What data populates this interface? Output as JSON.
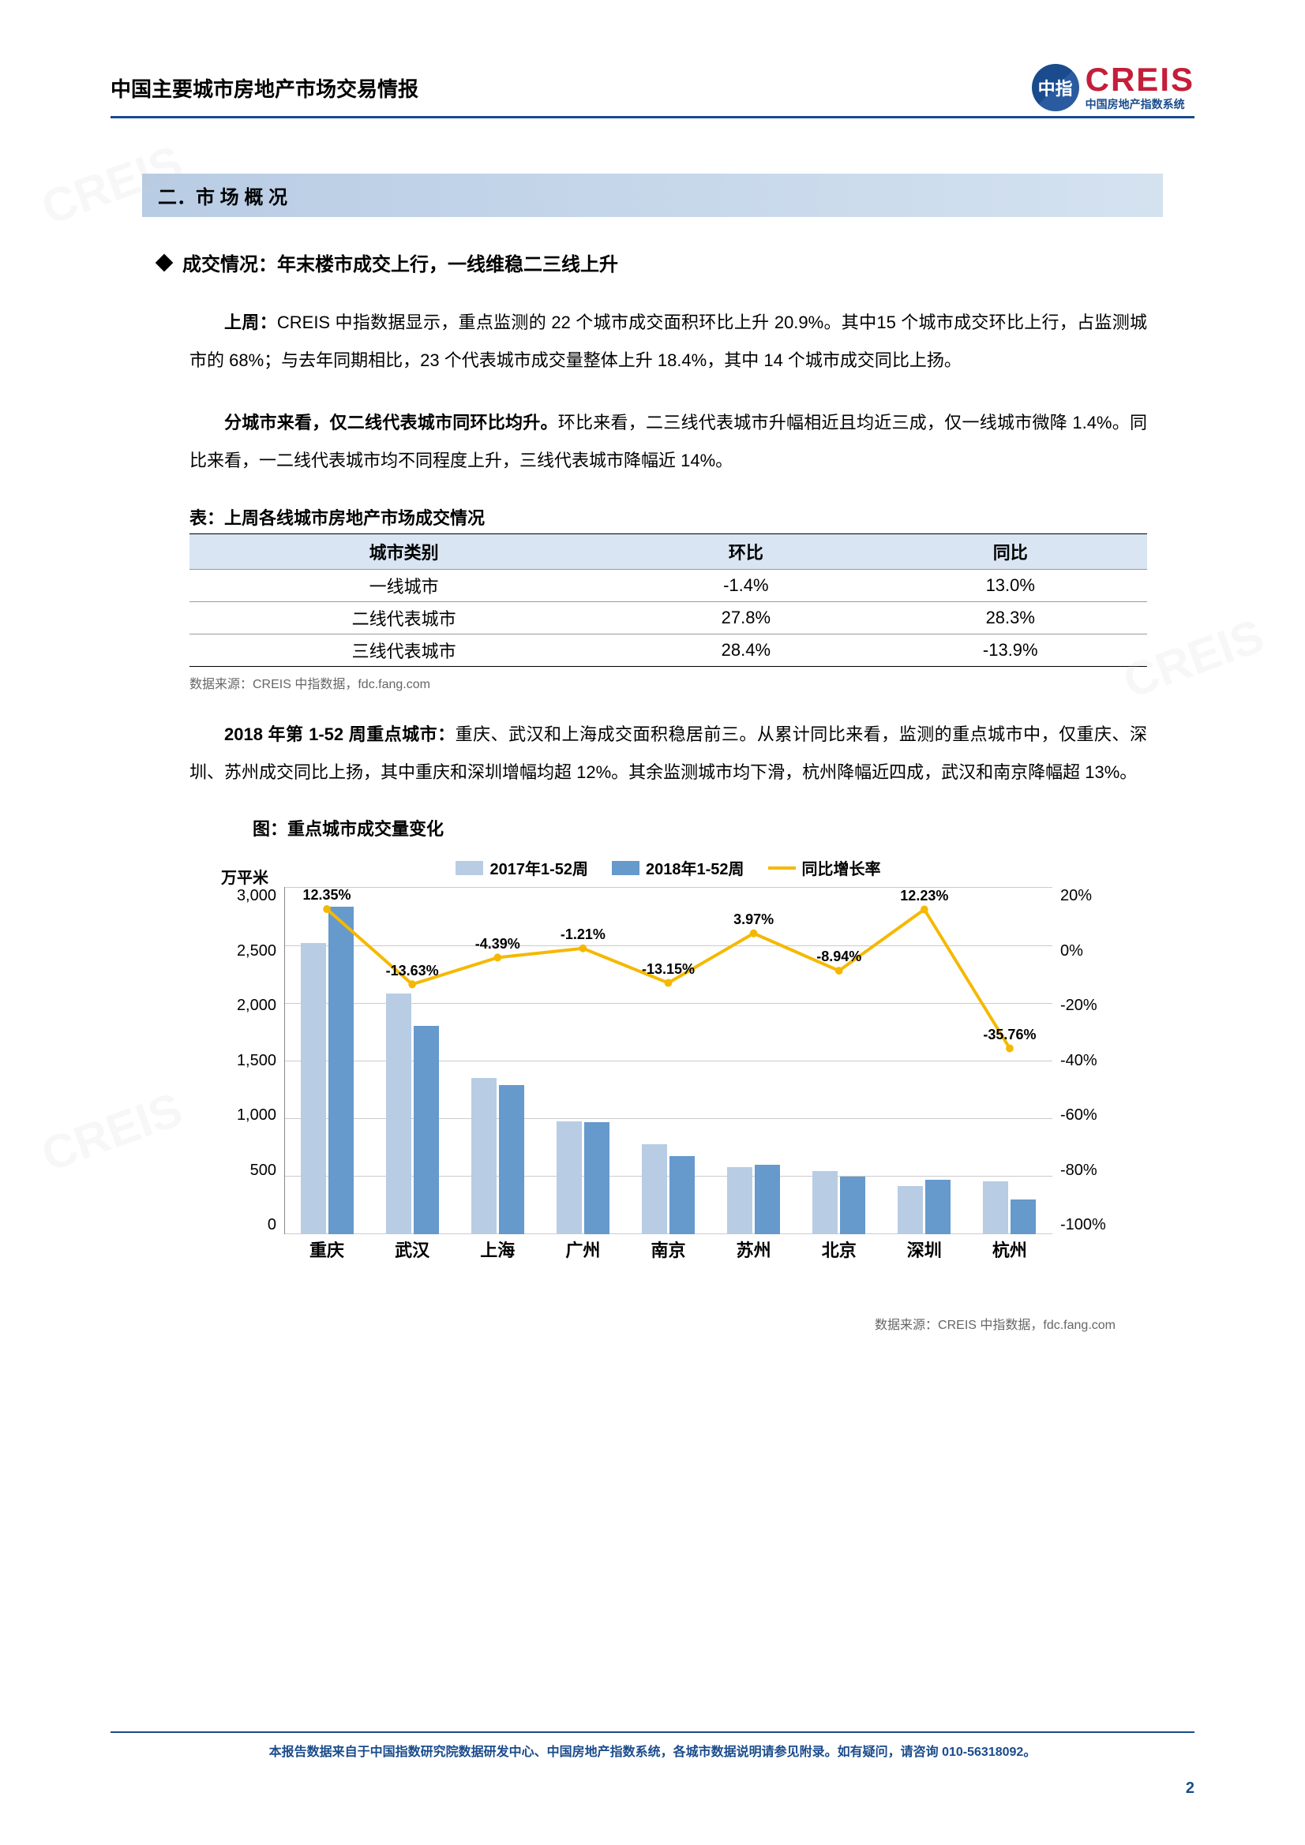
{
  "header": {
    "title": "中国主要城市房地产市场交易情报",
    "logo_main": "CREIS",
    "logo_sub": "中国房地产指数系统",
    "logo_icon_text": "中指"
  },
  "section": {
    "number": "二．",
    "title": "市 场  概 况"
  },
  "subsection": {
    "title": "成交情况：年末楼市成交上行，一线维稳二三线上升"
  },
  "paragraphs": {
    "p1_bold": "上周：",
    "p1_text": "CREIS 中指数据显示，重点监测的 22 个城市成交面积环比上升 20.9%。其中15 个城市成交环比上行，占监测城市的 68%；与去年同期相比，23 个代表城市成交量整体上升 18.4%，其中 14 个城市成交同比上扬。",
    "p2_bold": "分城市来看，仅二线代表城市同环比均升。",
    "p2_text": "环比来看，二三线代表城市升幅相近且均近三成，仅一线城市微降 1.4%。同比来看，一二线代表城市均不同程度上升，三线代表城市降幅近 14%。",
    "p3_bold": "2018 年第 1-52 周重点城市：",
    "p3_text": "重庆、武汉和上海成交面积稳居前三。从累计同比来看，监测的重点城市中，仅重庆、深圳、苏州成交同比上扬，其中重庆和深圳增幅均超 12%。其余监测城市均下滑，杭州降幅近四成，武汉和南京降幅超 13%。"
  },
  "table": {
    "title": "表：上周各线城市房地产市场成交情况",
    "headers": [
      "城市类别",
      "环比",
      "同比"
    ],
    "rows": [
      [
        "一线城市",
        "-1.4%",
        "13.0%"
      ],
      [
        "二线代表城市",
        "27.8%",
        "28.3%"
      ],
      [
        "三线代表城市",
        "28.4%",
        "-13.9%"
      ]
    ],
    "source": "数据来源：CREIS 中指数据，fdc.fang.com",
    "header_bg": "#d9e5f2"
  },
  "chart": {
    "title": "图：重点城市成交量变化",
    "type": "bar_line_combo",
    "legend": [
      {
        "label": "2017年1-52周",
        "color": "#b8cce4",
        "type": "bar"
      },
      {
        "label": "2018年1-52周",
        "color": "#6699cc",
        "type": "bar"
      },
      {
        "label": "同比增长率",
        "color": "#f5b800",
        "type": "line"
      }
    ],
    "y_left": {
      "unit": "万平米",
      "min": 0,
      "max": 3000,
      "step": 500,
      "ticks": [
        "3,000",
        "2,500",
        "2,000",
        "1,500",
        "1,000",
        "500",
        "0"
      ]
    },
    "y_right": {
      "min": -100,
      "max": 20,
      "step": 20,
      "ticks": [
        "20%",
        "0%",
        "-20%",
        "-40%",
        "-60%",
        "-80%",
        "-100%"
      ]
    },
    "categories": [
      "重庆",
      "武汉",
      "上海",
      "广州",
      "南京",
      "苏州",
      "北京",
      "深圳",
      "杭州"
    ],
    "series_2017": [
      2520,
      2080,
      1350,
      980,
      780,
      580,
      550,
      420,
      460
    ],
    "series_2018": [
      2830,
      1800,
      1290,
      970,
      680,
      600,
      500,
      470,
      300
    ],
    "growth_rate": [
      12.35,
      -13.63,
      -4.39,
      -1.21,
      -13.15,
      3.97,
      -8.94,
      12.23,
      -35.76
    ],
    "growth_labels": [
      "12.35%",
      "-13.63%",
      "-4.39%",
      "-1.21%",
      "-13.15%",
      "3.97%",
      "-8.94%",
      "12.23%",
      "-35.76%"
    ],
    "label_fontsize": 18,
    "axis_fontsize": 20,
    "bar_color_2017": "#b8cce4",
    "bar_color_2018": "#6699cc",
    "line_color": "#f5b800",
    "grid_color": "#cccccc",
    "background_color": "#ffffff",
    "source": "数据来源：CREIS 中指数据，fdc.fang.com"
  },
  "footer": {
    "text": "本报告数据来自于中国指数研究院数据研发中心、中国房地产指数系统，各城市数据说明请参见附录。如有疑问，请咨询 010-56318092。",
    "page_num": "2"
  }
}
